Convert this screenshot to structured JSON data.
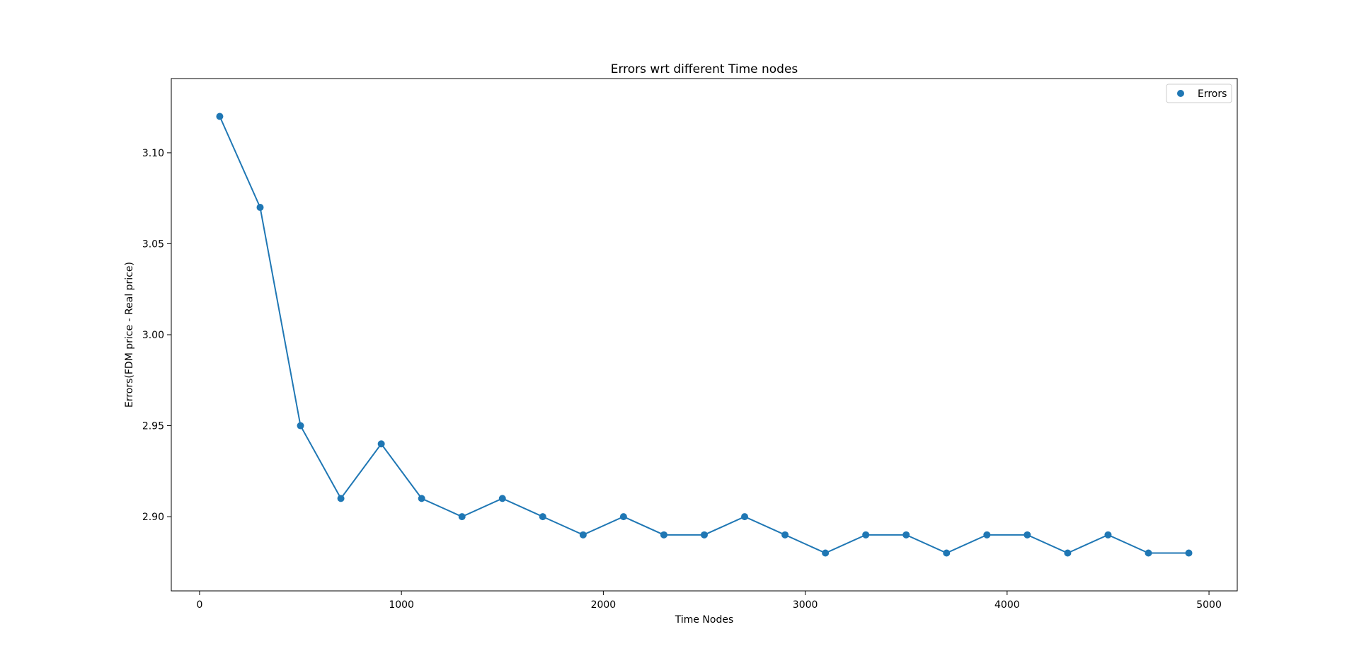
{
  "chart_data": {
    "type": "line",
    "title": "Errors wrt different Time nodes",
    "xlabel": "Time Nodes",
    "ylabel": "Errors(FDM price - Real price)",
    "xlim": [
      -140,
      5140
    ],
    "ylim": [
      2.8592,
      3.1408
    ],
    "xticks": [
      0,
      1000,
      2000,
      3000,
      4000,
      5000
    ],
    "xtick_labels": [
      "0",
      "1000",
      "2000",
      "3000",
      "4000",
      "5000"
    ],
    "yticks": [
      2.9,
      2.95,
      3.0,
      3.05,
      3.1
    ],
    "ytick_labels": [
      "2.90",
      "2.95",
      "3.00",
      "3.05",
      "3.10"
    ],
    "grid": false,
    "legend": {
      "position": "top-right",
      "entries": [
        "Errors"
      ]
    },
    "series": [
      {
        "name": "Errors",
        "color": "#1f77b4",
        "marker": "circle",
        "x": [
          100,
          300,
          500,
          700,
          900,
          1100,
          1300,
          1500,
          1700,
          1900,
          2100,
          2300,
          2500,
          2700,
          2900,
          3100,
          3300,
          3500,
          3700,
          3900,
          4100,
          4300,
          4500,
          4700,
          4900
        ],
        "y": [
          3.12,
          3.07,
          2.95,
          2.91,
          2.94,
          2.91,
          2.9,
          2.91,
          2.9,
          2.89,
          2.9,
          2.89,
          2.89,
          2.9,
          2.89,
          2.88,
          2.89,
          2.89,
          2.88,
          2.89,
          2.89,
          2.88,
          2.89,
          2.88,
          2.88
        ]
      }
    ]
  }
}
